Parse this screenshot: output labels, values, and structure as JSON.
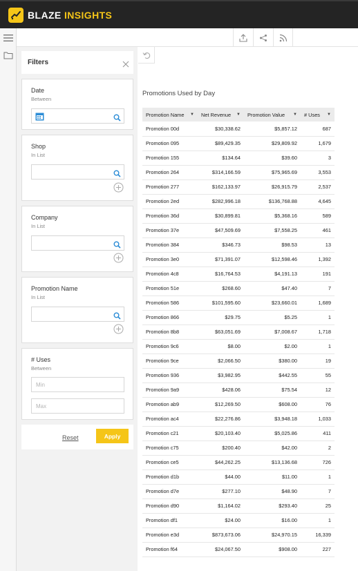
{
  "app": {
    "brand_main": "BLAZE",
    "brand_accent": "INSIGHTS",
    "accent_color": "#f5c518"
  },
  "toolbar": {
    "icons": [
      "export-icon",
      "share-icon",
      "rss-icon"
    ]
  },
  "sidebar": {
    "icons": [
      "hamburger-menu-icon",
      "folder-icon"
    ]
  },
  "filters": {
    "title": "Filters",
    "date": {
      "title": "Date",
      "sub": "Between"
    },
    "shop": {
      "title": "Shop",
      "sub": "In List"
    },
    "company": {
      "title": "Company",
      "sub": "In List"
    },
    "promotion_name": {
      "title": "Promotion Name",
      "sub": "In List"
    },
    "uses": {
      "title": "# Uses",
      "sub": "Between",
      "min_placeholder": "Min",
      "max_placeholder": "Max"
    },
    "reset_label": "Reset",
    "apply_label": "Apply"
  },
  "report": {
    "title": "Promotions Used by Day",
    "columns": [
      "Promotion Name",
      "Net Revenue",
      "Promotion Value",
      "# Uses"
    ],
    "rows": [
      [
        "Promotion 00d",
        "$30,338.62",
        "$5,857.12",
        "687"
      ],
      [
        "Promotion 095",
        "$89,429.35",
        "$29,809.92",
        "1,679"
      ],
      [
        "Promotion 155",
        "$134.64",
        "$39.60",
        "3"
      ],
      [
        "Promotion 264",
        "$314,166.59",
        "$75,965.69",
        "3,553"
      ],
      [
        "Promotion 277",
        "$162,133.97",
        "$26,915.79",
        "2,537"
      ],
      [
        "Promotion 2ed",
        "$282,996.18",
        "$136,768.88",
        "4,645"
      ],
      [
        "Promotion 36d",
        "$30,899.81",
        "$5,368.16",
        "589"
      ],
      [
        "Promotion 37e",
        "$47,509.69",
        "$7,558.25",
        "461"
      ],
      [
        "Promotion 384",
        "$346.73",
        "$98.53",
        "13"
      ],
      [
        "Promotion 3e0",
        "$71,391.07",
        "$12,598.46",
        "1,392"
      ],
      [
        "Promotion 4c8",
        "$16,764.53",
        "$4,191.13",
        "191"
      ],
      [
        "Promotion 51e",
        "$268.60",
        "$47.40",
        "7"
      ],
      [
        "Promotion 586",
        "$101,595.60",
        "$23,660.01",
        "1,689"
      ],
      [
        "Promotion 866",
        "$29.75",
        "$5.25",
        "1"
      ],
      [
        "Promotion 8b8",
        "$63,051.69",
        "$7,008.67",
        "1,718"
      ],
      [
        "Promotion 9c6",
        "$8.00",
        "$2.00",
        "1"
      ],
      [
        "Promotion 9ce",
        "$2,066.50",
        "$380.00",
        "19"
      ],
      [
        "Promotion 936",
        "$3,982.95",
        "$442.55",
        "55"
      ],
      [
        "Promotion 9a9",
        "$428.06",
        "$75.54",
        "12"
      ],
      [
        "Promotion ab9",
        "$12,269.50",
        "$608.00",
        "76"
      ],
      [
        "Promotion ac4",
        "$22,276.86",
        "$3,948.18",
        "1,033"
      ],
      [
        "Promotion c21",
        "$20,103.40",
        "$5,025.86",
        "411"
      ],
      [
        "Promotion c75",
        "$200.40",
        "$42.00",
        "2"
      ],
      [
        "Promotion ce5",
        "$44,262.25",
        "$13,136.68",
        "726"
      ],
      [
        "Promotion d1b",
        "$44.00",
        "$11.00",
        "1"
      ],
      [
        "Promotion d7e",
        "$277.10",
        "$48.90",
        "7"
      ],
      [
        "Promotion d90",
        "$1,164.02",
        "$293.40",
        "25"
      ],
      [
        "Promotion df1",
        "$24.00",
        "$16.00",
        "1"
      ],
      [
        "Promotion e3d",
        "$873,673.06",
        "$24,970.15",
        "16,339"
      ],
      [
        "Promotion f64",
        "$24,067.50",
        "$908.00",
        "227"
      ]
    ]
  }
}
